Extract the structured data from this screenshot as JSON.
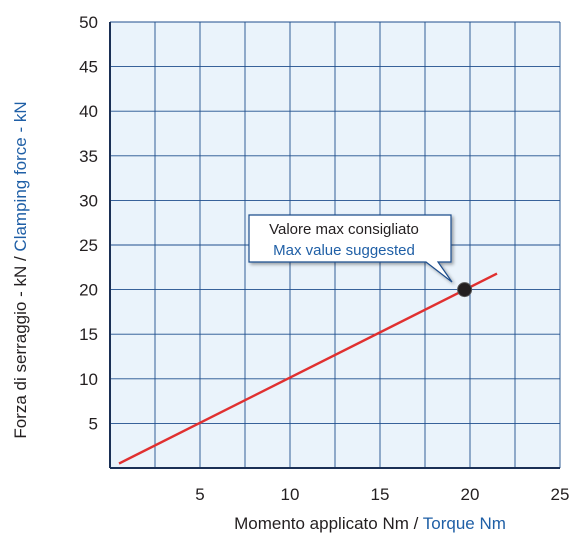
{
  "chart_data": {
    "type": "line",
    "xlim": [
      0,
      25
    ],
    "ylim": [
      0,
      50
    ],
    "x_ticks": [
      5,
      10,
      15,
      20,
      25
    ],
    "y_ticks": [
      5,
      10,
      15,
      20,
      25,
      30,
      35,
      40,
      45,
      50
    ],
    "grid": true,
    "xlabel": {
      "it": "Momento applicato Nm /",
      "en": "Torque Nm"
    },
    "ylabel": {
      "it": "Forza di serraggio - kN /",
      "en": "Clamping force - kN"
    },
    "series": [
      {
        "x": [
          0.5,
          21.5
        ],
        "y": [
          0.5,
          21.8
        ]
      }
    ],
    "annotation": {
      "it": "Valore max consigliato",
      "en": "Max value suggested",
      "point": {
        "x": 19.7,
        "y": 20
      }
    },
    "colors": {
      "line": "#e03030",
      "grid": "#1f4e8c",
      "plot_bg": "#eaf3fb",
      "point": "#231f20",
      "callout_border": "#1f4e8c",
      "english_text": "#1f5fa6"
    }
  }
}
